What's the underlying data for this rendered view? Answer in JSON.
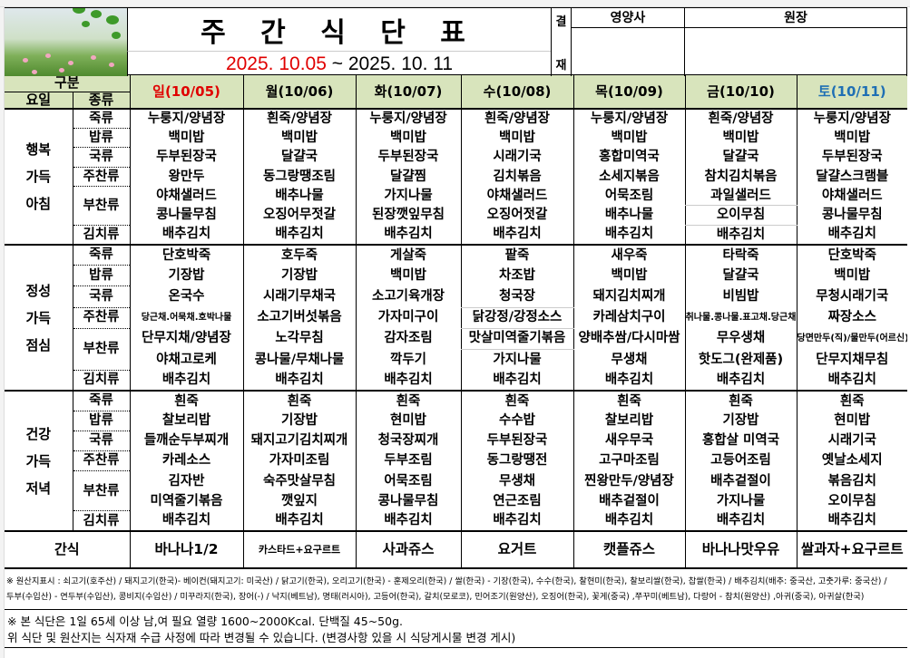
{
  "header": {
    "title": "주 간 식 단 표",
    "date_start": "2025. 10.05",
    "date_sep": " ~ ",
    "date_end": "2025. 10. 11",
    "approval_top": "결",
    "approval_bottom": "재",
    "signers": [
      "영양사",
      "원장"
    ]
  },
  "table": {
    "group_label": "구분",
    "day_col_label": "요일",
    "type_col_label": "종류",
    "days": [
      {
        "label": "일(10/05)",
        "color": "#e00000"
      },
      {
        "label": "월(10/06)",
        "color": "#000000"
      },
      {
        "label": "화(10/07)",
        "color": "#000000"
      },
      {
        "label": "수(10/08)",
        "color": "#000000"
      },
      {
        "label": "목(10/09)",
        "color": "#000000"
      },
      {
        "label": "금(10/10)",
        "color": "#000000"
      },
      {
        "label": "토(10/11)",
        "color": "#1f6fb4"
      }
    ],
    "meals": [
      {
        "name": "행복\n가득\n아침",
        "rows": [
          {
            "cat": "죽류",
            "items": [
              "누룽지/양념장",
              "흰죽/양념장",
              "누룽지/양념장",
              "흰죽/양념장",
              "누룽지/양념장",
              "흰죽/양념장",
              "누룽지/양념장"
            ]
          },
          {
            "cat": "밥류",
            "items": [
              "백미밥",
              "백미밥",
              "백미밥",
              "백미밥",
              "백미밥",
              "백미밥",
              "백미밥"
            ]
          },
          {
            "cat": "국류",
            "items": [
              "두부된장국",
              "달걀국",
              "두부된장국",
              "시래기국",
              "홍합미역국",
              "달걀국",
              "두부된장국"
            ]
          },
          {
            "cat": "주찬류",
            "items": [
              "왕만두",
              "동그랑땡조림",
              "달걀찜",
              "김치볶음",
              "소세지볶음",
              "참치김치볶음",
              "달걀스크램블"
            ]
          },
          {
            "cat": "부찬류",
            "items": [
              "야채샐러드",
              "배추나물",
              "가지나물",
              "야채샐러드",
              "어묵조림",
              "과일샐러드",
              "야채샐러드"
            ]
          },
          {
            "cat": "",
            "items": [
              "콩나물무침",
              "오징어무젓갈",
              "된장깻잎무침",
              "오징어젓갈",
              "배추나물",
              "오이무침",
              "콩나물무침"
            ]
          },
          {
            "cat": "김치류",
            "items": [
              "배추김치",
              "배추김치",
              "배추김치",
              "배추김치",
              "배추김치",
              "배추김치",
              "배추김치"
            ]
          }
        ]
      },
      {
        "name": "정성\n가득\n점심",
        "rows": [
          {
            "cat": "죽류",
            "items": [
              "단호박죽",
              "호두죽",
              "게살죽",
              "팥죽",
              "새우죽",
              "타락죽",
              "단호박죽"
            ]
          },
          {
            "cat": "밥류",
            "items": [
              "기장밥",
              "기장밥",
              "백미밥",
              "차조밥",
              "백미밥",
              "달걀국",
              "백미밥"
            ]
          },
          {
            "cat": "국류",
            "items": [
              "온국수",
              "시래기무채국",
              "소고기육개장",
              "청국장",
              "돼지김치찌개",
              "비빔밥",
              "무청시래기국"
            ]
          },
          {
            "cat": "주찬류",
            "items": [
              "당근채.어묵채.호박나물",
              "소고기버섯볶음",
              "가자미구이",
              "닭강정/강정소스",
              "카레삼치구이",
              "취나물.콩나물.표고채.당근채",
              "짜장소스"
            ]
          },
          {
            "cat": "부찬류",
            "items": [
              "단무지채/양념장",
              "노각무침",
              "감자조림",
              "맛살미역줄기볶음",
              "양배추쌈/다시마쌈",
              "무우생채",
              "당면만두(직)/물만두(어르신)"
            ]
          },
          {
            "cat": "",
            "items": [
              "야채고로케",
              "콩나물/무채나물",
              "깍두기",
              "가지나물",
              "무생채",
              "핫도그(완제품)",
              "단무지채무침"
            ]
          },
          {
            "cat": "김치류",
            "items": [
              "배추김치",
              "배추김치",
              "배추김치",
              "배추김치",
              "배추김치",
              "배추김치",
              "배추김치"
            ]
          }
        ]
      },
      {
        "name": "건강\n가득\n저녁",
        "rows": [
          {
            "cat": "죽류",
            "items": [
              "흰죽",
              "흰죽",
              "흰죽",
              "흰죽",
              "흰죽",
              "흰죽",
              "흰죽"
            ]
          },
          {
            "cat": "밥류",
            "items": [
              "찰보리밥",
              "기장밥",
              "현미밥",
              "수수밥",
              "찰보리밥",
              "기장밥",
              "현미밥"
            ]
          },
          {
            "cat": "국류",
            "items": [
              "들깨순두부찌개",
              "돼지고기김치찌개",
              "청국장찌개",
              "두부된장국",
              "새우무국",
              "홍합살 미역국",
              "시래기국"
            ]
          },
          {
            "cat": "주찬류",
            "items": [
              "카레소스",
              "가자미조림",
              "두부조림",
              "동그랑땡전",
              "고구마조림",
              "고등어조림",
              "옛날소세지"
            ]
          },
          {
            "cat": "부찬류",
            "items": [
              "김자반",
              "숙주맛살무침",
              "어묵조림",
              "무생채",
              "찐왕만두/양념장",
              "배추겉절이",
              "볶음김치"
            ]
          },
          {
            "cat": "",
            "items": [
              "미역줄기볶음",
              "깻잎지",
              "콩나물무침",
              "연근조림",
              "배추겉절이",
              "가지나물",
              "오이무침"
            ]
          },
          {
            "cat": "김치류",
            "items": [
              "배추김치",
              "배추김치",
              "배추김치",
              "배추김치",
              "배추김치",
              "배추김치",
              "배추김치"
            ]
          }
        ]
      }
    ],
    "snack": {
      "label": "간식",
      "items": [
        "바나나1/2",
        "카스타드+요구르트",
        "사과쥬스",
        "요거트",
        "캣플쥬스",
        "바나나맛우유",
        "쌀과자+요구르트"
      ]
    }
  },
  "notes": {
    "origin_line1": "※ 원산지표시 : 쇠고기(호주산) / 돼지고기(한국)- 베이컨(돼지고기: 미국산) / 닭고기(한국), 오리고기(한국) - 훈제오리(한국) / 쌀(한국) - 기장(한국), 수수(한국), 찰현미(한국), 찰보리쌀(한국), 찹쌀(한국) / 배추김치(배추: 중국산, 고춧가루: 중국산) /",
    "origin_line2": "두부(수입산) - 연두부(수입산), 콩비지(수입산) / 미꾸라지(한국), 장어(-) / 낙지(베트남), 명태(러시아), 고등어(한국), 갈치(모로코), 민어조기(원양산),  오징어(한국), 꽃게(중국) ,쭈꾸미(베트남), 다랑어 - 참치(원양산) ,아귀(중국), 아귀살(한국)",
    "footer_line1": "※ 본 식단은 1일 65세 이상 남,여 필요 열량 1600~2000Kcal. 단백질 45~50g.",
    "footer_line2": "위 식단 및 원산지는 식자재 수급 사정에 따라 변경될 수 있습니다. (변경사항 있을 시 식당게시물 변경 게시)"
  }
}
